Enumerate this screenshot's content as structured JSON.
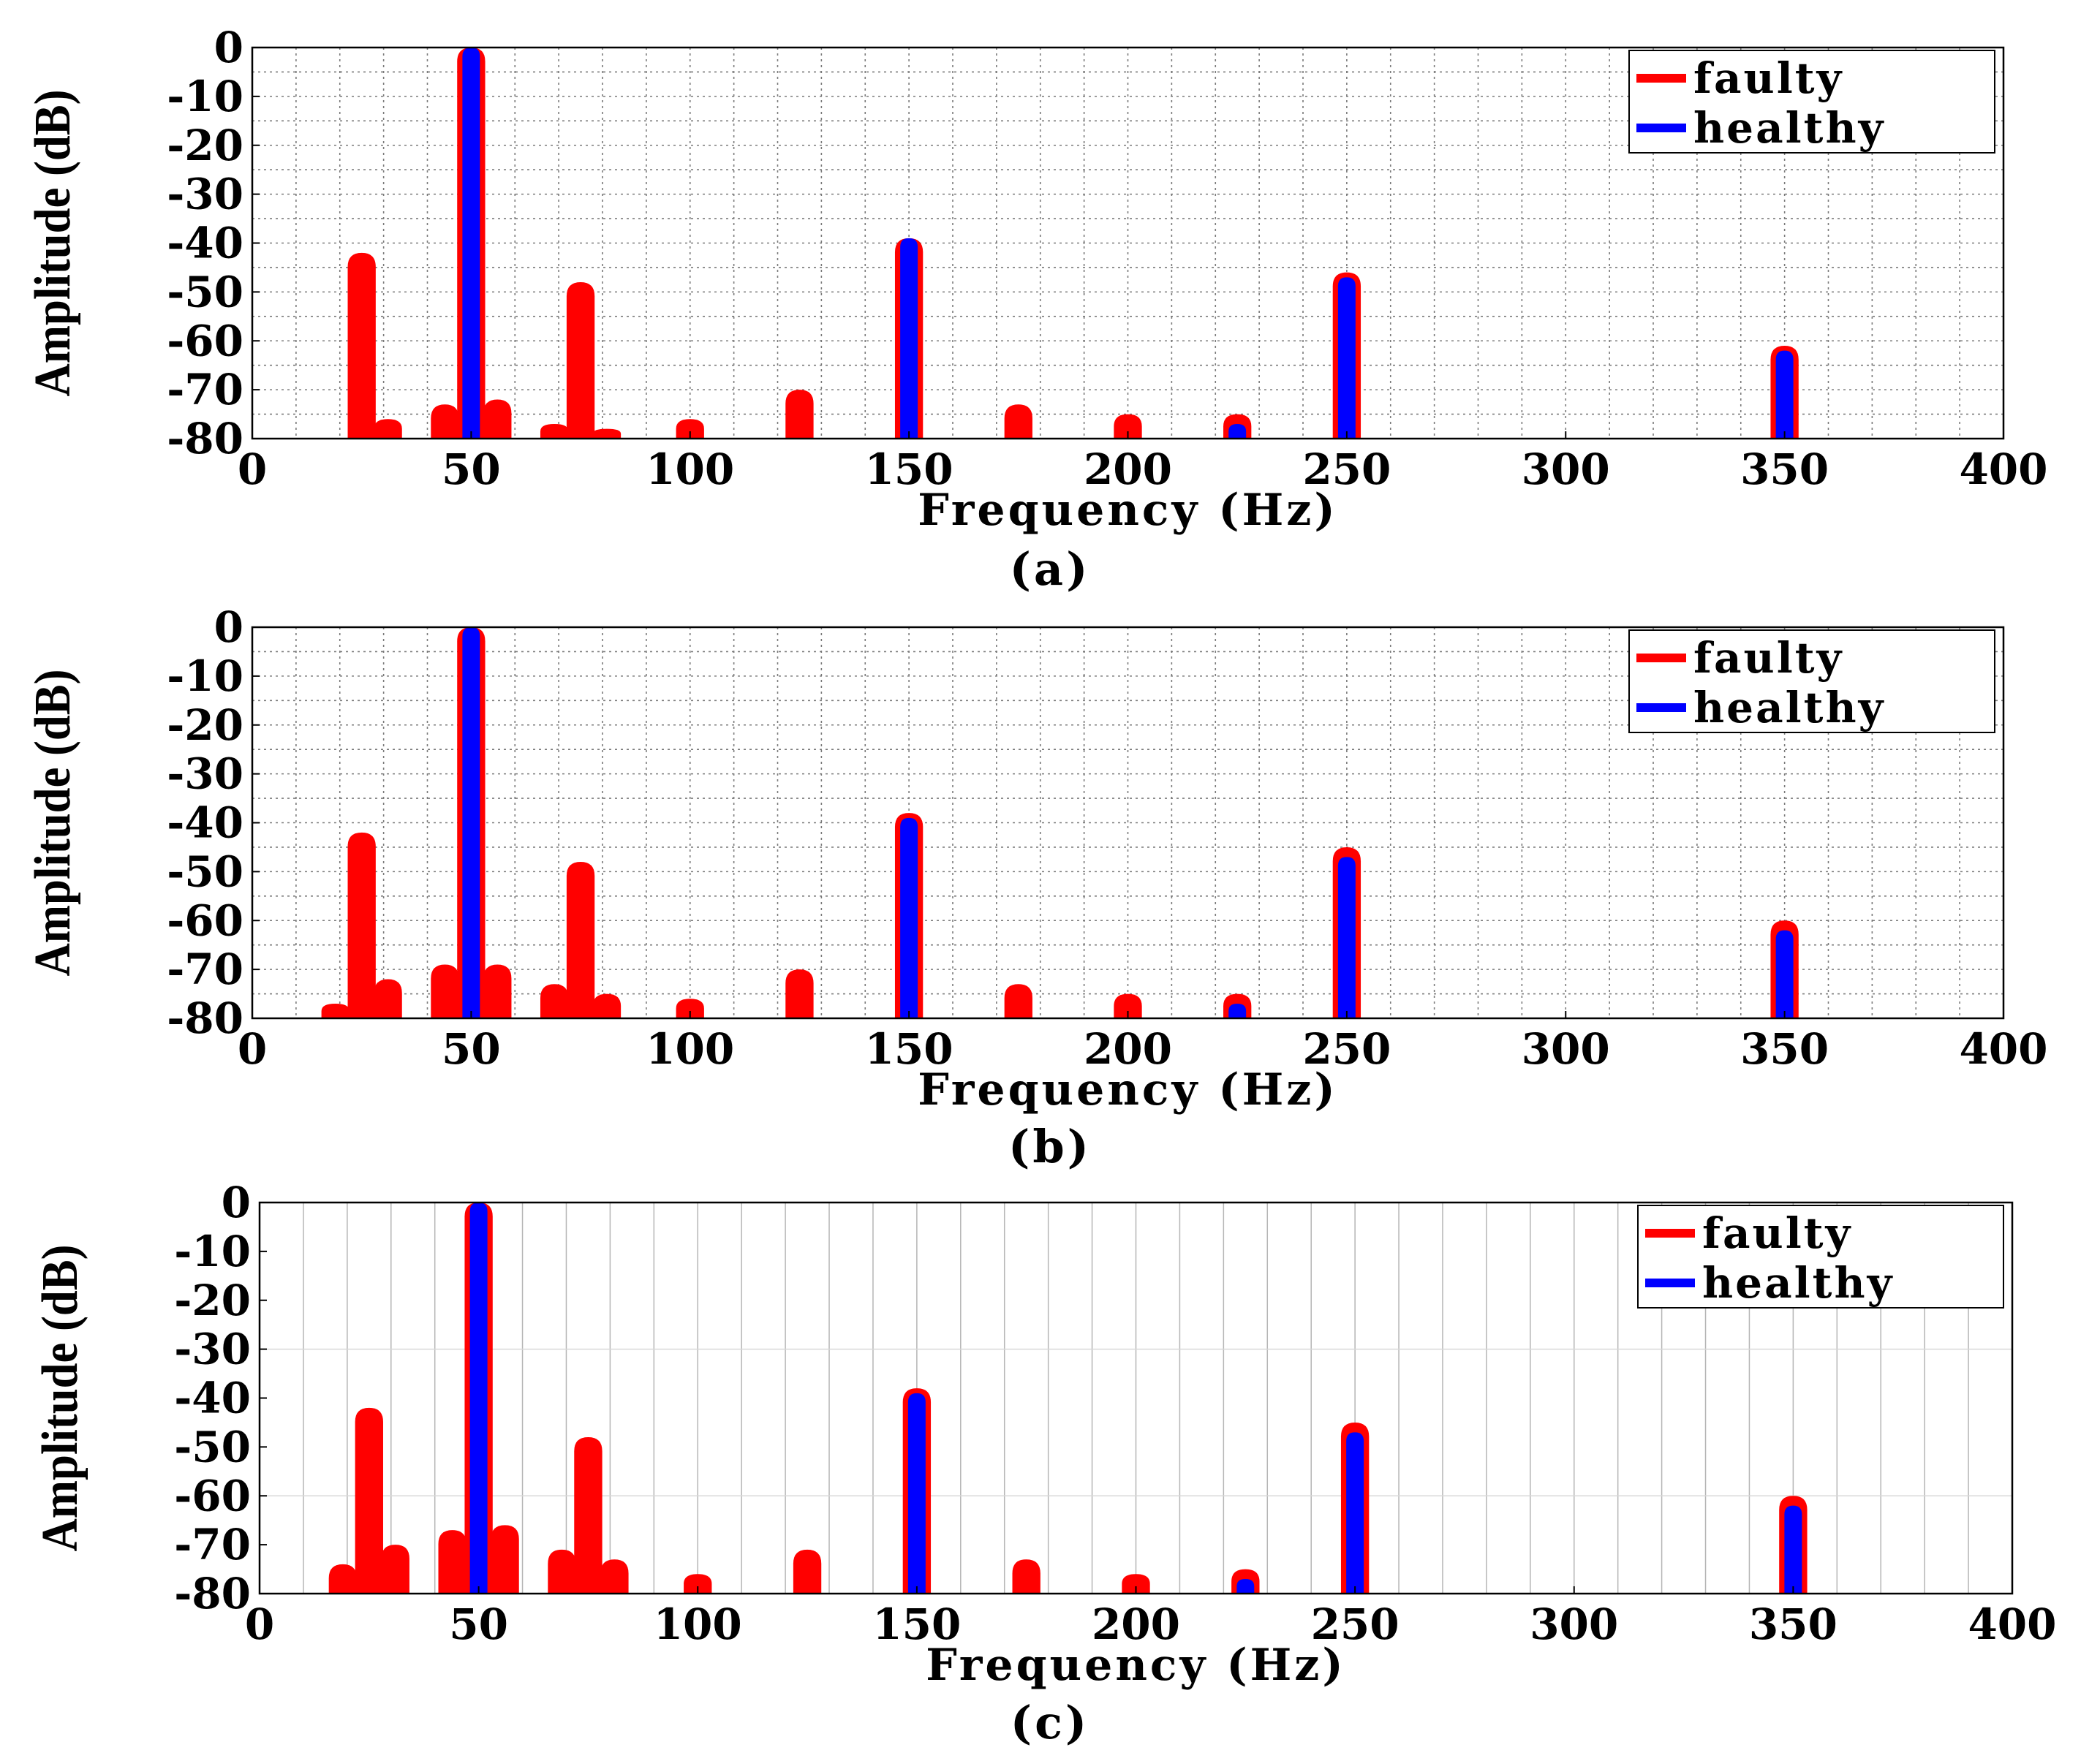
{
  "chart_data": [
    {
      "type": "bar",
      "panel_label": "(a)",
      "xlabel": "Frequency (Hz)",
      "ylabel": "Amplitude (dB)",
      "xlim": [
        0,
        400
      ],
      "ylim": [
        -80,
        0
      ],
      "xticks": [
        0,
        50,
        100,
        150,
        200,
        250,
        300,
        350,
        400
      ],
      "yticks": [
        0,
        -10,
        -20,
        -30,
        -40,
        -50,
        -60,
        -70,
        -80
      ],
      "grid": "dotted",
      "legend": "top-right",
      "series": [
        {
          "name": "faulty",
          "color": "#ff0000",
          "x": [
            25,
            31,
            44,
            50,
            56,
            69,
            75,
            81,
            100,
            125,
            150,
            175,
            200,
            225,
            250,
            350
          ],
          "values": [
            -42,
            -76,
            -73,
            0,
            -72,
            -77,
            -48,
            -78,
            -76,
            -70,
            -39,
            -73,
            -75,
            -75,
            -46,
            -61
          ]
        },
        {
          "name": "healthy",
          "color": "#0000ff",
          "x": [
            50,
            150,
            225,
            250,
            350
          ],
          "values": [
            0,
            -39,
            -77,
            -47,
            -62
          ]
        }
      ]
    },
    {
      "type": "bar",
      "panel_label": "(b)",
      "xlabel": "Frequency (Hz)",
      "ylabel": "Amplitude (dB)",
      "xlim": [
        0,
        400
      ],
      "ylim": [
        -80,
        0
      ],
      "xticks": [
        0,
        50,
        100,
        150,
        200,
        250,
        300,
        350,
        400
      ],
      "yticks": [
        0,
        -10,
        -20,
        -30,
        -40,
        -50,
        -60,
        -70,
        -80
      ],
      "grid": "dotted",
      "legend": "top-right",
      "series": [
        {
          "name": "faulty",
          "color": "#ff0000",
          "x": [
            19,
            25,
            31,
            44,
            50,
            56,
            69,
            75,
            81,
            100,
            125,
            150,
            175,
            200,
            225,
            250,
            350
          ],
          "values": [
            -77,
            -42,
            -72,
            -69,
            0,
            -69,
            -73,
            -48,
            -75,
            -76,
            -70,
            -38,
            -73,
            -75,
            -75,
            -45,
            -60
          ]
        },
        {
          "name": "healthy",
          "color": "#0000ff",
          "x": [
            50,
            150,
            225,
            250,
            350
          ],
          "values": [
            0,
            -39,
            -77,
            -47,
            -62
          ]
        }
      ]
    },
    {
      "type": "bar",
      "panel_label": "(c)",
      "xlabel": "Frequency (Hz)",
      "ylabel": "Amplitude (dB)",
      "xlim": [
        0,
        400
      ],
      "ylim": [
        -80,
        0
      ],
      "xticks": [
        0,
        50,
        100,
        150,
        200,
        250,
        300,
        350,
        400
      ],
      "yticks": [
        0,
        -10,
        -20,
        -30,
        -40,
        -50,
        -60,
        -70,
        -80
      ],
      "grid": "vertical-dense",
      "legend": "top-right",
      "series": [
        {
          "name": "faulty",
          "color": "#ff0000",
          "x": [
            19,
            25,
            31,
            44,
            50,
            56,
            69,
            75,
            81,
            100,
            125,
            150,
            175,
            200,
            225,
            250,
            350
          ],
          "values": [
            -74,
            -42,
            -70,
            -67,
            0,
            -66,
            -71,
            -48,
            -73,
            -76,
            -71,
            -38,
            -73,
            -76,
            -75,
            -45,
            -60
          ]
        },
        {
          "name": "healthy",
          "color": "#0000ff",
          "x": [
            50,
            150,
            225,
            250,
            350
          ],
          "values": [
            0,
            -39,
            -77,
            -47,
            -62
          ]
        }
      ]
    }
  ]
}
